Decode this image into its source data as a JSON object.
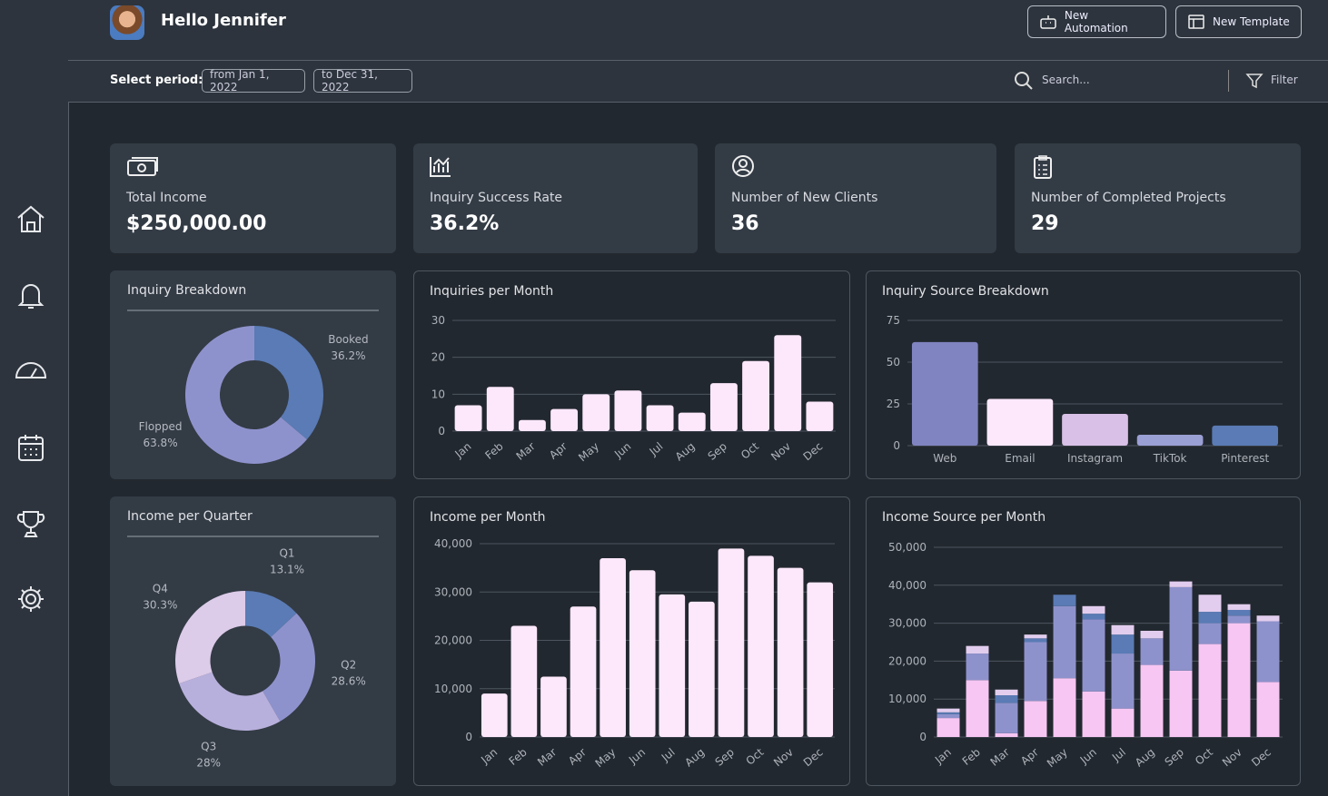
{
  "header": {
    "greeting": "Hello Jennifer",
    "buttons": [
      "New Automation",
      "New Template"
    ]
  },
  "filters": {
    "label": "Select period:",
    "from": "from Jan 1, 2022",
    "to": "to Dec 31, 2022",
    "search": "Search...",
    "filter": "Filter"
  },
  "kpis": [
    {
      "label": "Total Income",
      "value": "$250,000.00"
    },
    {
      "label": "Inquiry Success Rate",
      "value": "36.2%"
    },
    {
      "label": "Number of New Clients",
      "value": "36"
    },
    {
      "label": "Number of Completed Projects",
      "value": "29"
    }
  ],
  "chart_data": [
    {
      "type": "donut",
      "title": "Inquiry Breakdown",
      "categories": [
        "Booked",
        "Flopped"
      ],
      "values": [
        36.2,
        63.8
      ],
      "value_labels": [
        "36.2%",
        "63.8%"
      ],
      "colors": [
        "#5a7bb5",
        "#8e92cc"
      ]
    },
    {
      "type": "bar",
      "title": "Inquiries per Month",
      "categories": [
        "Jan",
        "Feb",
        "Mar",
        "Apr",
        "May",
        "Jun",
        "Jul",
        "Aug",
        "Sep",
        "Oct",
        "Nov",
        "Dec"
      ],
      "values": [
        7,
        12,
        3,
        6,
        10,
        11,
        7,
        5,
        13,
        19,
        26,
        8
      ],
      "color": "#fde8fb",
      "ylim": [
        0,
        30
      ],
      "yticks": [
        0,
        10,
        20,
        30
      ],
      "grid": true
    },
    {
      "type": "bar",
      "title": "Inquiry Source Breakdown",
      "categories": [
        "Web",
        "Email",
        "Instagram",
        "TikTok",
        "Pinterest"
      ],
      "values": [
        62,
        28,
        19,
        6.5,
        12
      ],
      "colors": [
        "#8084c0",
        "#fde8fb",
        "#d9c0e6",
        "#9a9fd4",
        "#5a7bb5"
      ],
      "ylim": [
        0,
        75
      ],
      "yticks": [
        0,
        25,
        50,
        75
      ],
      "grid": true
    },
    {
      "type": "donut",
      "title": "Income per Quarter",
      "categories": [
        "Q1",
        "Q2",
        "Q3",
        "Q4"
      ],
      "values": [
        13.1,
        28.6,
        28,
        30.3
      ],
      "value_labels": [
        "13.1%",
        "28.6%",
        "28%",
        "30.3%"
      ],
      "colors": [
        "#5a7bb5",
        "#8e92cc",
        "#b8b0dc",
        "#dccbe9"
      ]
    },
    {
      "type": "bar",
      "title": "Income per Month",
      "categories": [
        "Jan",
        "Feb",
        "Mar",
        "Apr",
        "May",
        "Jun",
        "Jul",
        "Aug",
        "Sep",
        "Oct",
        "Nov",
        "Dec"
      ],
      "values": [
        9000,
        23000,
        12500,
        27000,
        37000,
        34500,
        29500,
        28000,
        39000,
        37500,
        35000,
        32000
      ],
      "color": "#fde8fb",
      "ylim": [
        0,
        40000
      ],
      "yticks": [
        0,
        {
          "value": 10000,
          "label": "10,000"
        },
        {
          "value": 20000,
          "label": "20,000"
        },
        {
          "value": 30000,
          "label": "30,000"
        },
        {
          "value": 40000,
          "label": "40,000"
        }
      ],
      "grid": true
    },
    {
      "type": "bar",
      "stacked": true,
      "title": "Income Source per Month",
      "categories": [
        "Jan",
        "Feb",
        "Mar",
        "Apr",
        "May",
        "Jun",
        "Jul",
        "Aug",
        "Sep",
        "Oct",
        "Nov",
        "Dec"
      ],
      "series": [
        {
          "color": "#f7c6f3",
          "values": [
            5000,
            15000,
            1000,
            9500,
            15500,
            12000,
            7500,
            19000,
            17500,
            24500,
            30000,
            14500
          ]
        },
        {
          "color": "#8e92cc",
          "values": [
            1000,
            7000,
            8000,
            15500,
            19000,
            19000,
            14500,
            7000,
            22000,
            5500,
            2000,
            16000
          ]
        },
        {
          "color": "#5a7bb5",
          "values": [
            500,
            0,
            2000,
            1000,
            3000,
            1500,
            5000,
            0,
            0,
            3000,
            1500,
            0
          ]
        },
        {
          "color": "#e2cdee",
          "values": [
            1000,
            2000,
            1500,
            1000,
            0,
            2000,
            2500,
            2000,
            1500,
            4500,
            1500,
            1500
          ]
        }
      ],
      "ylim": [
        0,
        50000
      ],
      "yticks": [
        0,
        {
          "value": 10000,
          "label": "10,000"
        },
        {
          "value": 20000,
          "label": "20,000"
        },
        {
          "value": 30000,
          "label": "30,000"
        },
        {
          "value": 40000,
          "label": "40,000"
        },
        {
          "value": 50000,
          "label": "50,000"
        }
      ],
      "grid": true
    }
  ]
}
